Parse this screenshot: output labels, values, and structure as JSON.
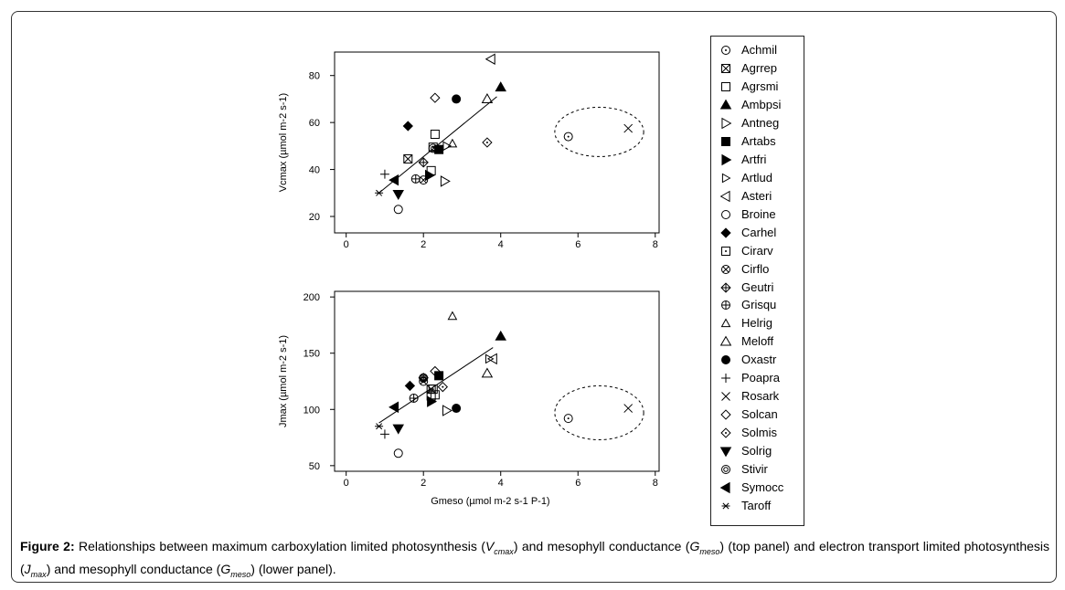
{
  "figure": {
    "caption_label": "Figure 2:",
    "caption_parts": [
      " Relationships between maximum carboxylation limited photosynthesis (",
      "V",
      "cmax",
      ") and mesophyll conductance (",
      "G",
      "meso",
      ") (top panel) and electron transport limited photosynthesis (",
      "J",
      "max",
      ") and mesophyll conductance (",
      "G",
      "meso",
      ") (lower panel)."
    ]
  },
  "legend": {
    "items": [
      {
        "label": "Achmil",
        "marker": "circle-dot"
      },
      {
        "label": "Agrrep",
        "marker": "square-x"
      },
      {
        "label": "Agrsmi",
        "marker": "square-open"
      },
      {
        "label": "Ambpsi",
        "marker": "triangle-up-filled"
      },
      {
        "label": "Antneg",
        "marker": "triangle-right-open"
      },
      {
        "label": "Artabs",
        "marker": "square-filled"
      },
      {
        "label": "Artfri",
        "marker": "triangle-right-filled"
      },
      {
        "label": "Artlud",
        "marker": "triangle-right-small"
      },
      {
        "label": "Asteri",
        "marker": "triangle-left-open"
      },
      {
        "label": "Broine",
        "marker": "circle-open"
      },
      {
        "label": "Carhel",
        "marker": "diamond-filled"
      },
      {
        "label": "Cirarv",
        "marker": "square-dot"
      },
      {
        "label": "Cirflo",
        "marker": "circle-x"
      },
      {
        "label": "Geutri",
        "marker": "diamond-plus"
      },
      {
        "label": "Grisqu",
        "marker": "circle-plus"
      },
      {
        "label": "Helrig",
        "marker": "triangle-up-small"
      },
      {
        "label": "Meloff",
        "marker": "triangle-up-open"
      },
      {
        "label": "Oxastr",
        "marker": "circle-filled"
      },
      {
        "label": "Poapra",
        "marker": "plus"
      },
      {
        "label": "Rosark",
        "marker": "cross"
      },
      {
        "label": "Solcan",
        "marker": "diamond-open"
      },
      {
        "label": "Solmis",
        "marker": "diamond-dot"
      },
      {
        "label": "Solrig",
        "marker": "triangle-down-filled"
      },
      {
        "label": "Stivir",
        "marker": "circle-circle"
      },
      {
        "label": "Symocc",
        "marker": "triangle-left-filled"
      },
      {
        "label": "Taroff",
        "marker": "asterisk"
      }
    ]
  },
  "chart_data": [
    {
      "type": "scatter",
      "panel": "top",
      "ylabel": "Vcmax (µmol m-2 s-1)",
      "xlabel": "",
      "xlim": [
        -0.3,
        8.1
      ],
      "ylim": [
        13,
        90
      ],
      "xticks": [
        0,
        2,
        4,
        6,
        8
      ],
      "yticks": [
        20,
        40,
        60,
        80
      ],
      "fit_line": {
        "x": [
          0.85,
          3.9
        ],
        "y": [
          30,
          71
        ]
      },
      "outlier_ellipse": {
        "center": [
          6.55,
          56
        ],
        "rx": 1.15,
        "ry": 10.5
      },
      "points": [
        {
          "species": "Achmil",
          "x": 5.75,
          "y": 54
        },
        {
          "species": "Agrrep",
          "x": 1.6,
          "y": 44.5
        },
        {
          "species": "Agrsmi",
          "x": 2.3,
          "y": 55
        },
        {
          "species": "Agrsmi",
          "x": 2.2,
          "y": 39.5
        },
        {
          "species": "Ambpsi",
          "x": 4.0,
          "y": 75
        },
        {
          "species": "Antneg",
          "x": 2.55,
          "y": 35
        },
        {
          "species": "Artabs",
          "x": 2.4,
          "y": 48.5
        },
        {
          "species": "Artfri",
          "x": 2.15,
          "y": 37.5
        },
        {
          "species": "Artlud",
          "x": 2.6,
          "y": 50
        },
        {
          "species": "Asteri",
          "x": 3.75,
          "y": 87
        },
        {
          "species": "Broine",
          "x": 1.35,
          "y": 23
        },
        {
          "species": "Carhel",
          "x": 1.6,
          "y": 58.5
        },
        {
          "species": "Cirarv",
          "x": 2.25,
          "y": 49.5
        },
        {
          "species": "Cirflo",
          "x": 2.0,
          "y": 35.5
        },
        {
          "species": "Geutri",
          "x": 2.0,
          "y": 43
        },
        {
          "species": "Grisqu",
          "x": 1.8,
          "y": 36
        },
        {
          "species": "Helrig",
          "x": 2.75,
          "y": 51
        },
        {
          "species": "Meloff",
          "x": 3.65,
          "y": 70
        },
        {
          "species": "Oxastr",
          "x": 2.85,
          "y": 70
        },
        {
          "species": "Poapra",
          "x": 1.0,
          "y": 38
        },
        {
          "species": "Rosark",
          "x": 7.3,
          "y": 57.5
        },
        {
          "species": "Solcan",
          "x": 2.3,
          "y": 70.5
        },
        {
          "species": "Solmis",
          "x": 3.65,
          "y": 51.5
        },
        {
          "species": "Solrig",
          "x": 1.35,
          "y": 29.5
        },
        {
          "species": "Stivir",
          "x": 2.25,
          "y": 49
        },
        {
          "species": "Symocc",
          "x": 1.25,
          "y": 35.5
        },
        {
          "species": "Taroff",
          "x": 0.85,
          "y": 30
        }
      ]
    },
    {
      "type": "scatter",
      "panel": "bottom",
      "ylabel": "Jmax (µmol m-2 s-1)",
      "xlabel": "Gmeso (µmol m-2 s-1 P-1)",
      "xlim": [
        -0.3,
        8.1
      ],
      "ylim": [
        45,
        205
      ],
      "xticks": [
        0,
        2,
        4,
        6,
        8
      ],
      "yticks": [
        50,
        100,
        150,
        200
      ],
      "fit_line": {
        "x": [
          0.85,
          3.8
        ],
        "y": [
          88,
          155
        ]
      },
      "outlier_ellipse": {
        "center": [
          6.55,
          97
        ],
        "rx": 1.15,
        "ry": 24
      },
      "points": [
        {
          "species": "Achmil",
          "x": 5.75,
          "y": 92
        },
        {
          "species": "Agrrep",
          "x": 2.2,
          "y": 118
        },
        {
          "species": "Agrsmi",
          "x": 2.3,
          "y": 113
        },
        {
          "species": "Agrsmi",
          "x": 2.2,
          "y": 112
        },
        {
          "species": "Ambpsi",
          "x": 4.0,
          "y": 165
        },
        {
          "species": "Antneg",
          "x": 2.6,
          "y": 99
        },
        {
          "species": "Artabs",
          "x": 2.4,
          "y": 130
        },
        {
          "species": "Artfri",
          "x": 2.2,
          "y": 107
        },
        {
          "species": "Artlud",
          "x": 3.7,
          "y": 145
        },
        {
          "species": "Asteri",
          "x": 3.8,
          "y": 145
        },
        {
          "species": "Broine",
          "x": 1.35,
          "y": 61
        },
        {
          "species": "Carhel",
          "x": 1.65,
          "y": 121
        },
        {
          "species": "Cirarv",
          "x": 2.25,
          "y": 118
        },
        {
          "species": "Cirflo",
          "x": 2.0,
          "y": 125
        },
        {
          "species": "Geutri",
          "x": 2.0,
          "y": 128
        },
        {
          "species": "Grisqu",
          "x": 1.75,
          "y": 110
        },
        {
          "species": "Helrig",
          "x": 2.75,
          "y": 183
        },
        {
          "species": "Meloff",
          "x": 3.65,
          "y": 132
        },
        {
          "species": "Oxastr",
          "x": 2.85,
          "y": 101
        },
        {
          "species": "Poapra",
          "x": 1.0,
          "y": 78
        },
        {
          "species": "Rosark",
          "x": 7.3,
          "y": 101
        },
        {
          "species": "Solcan",
          "x": 2.3,
          "y": 134
        },
        {
          "species": "Solmis",
          "x": 2.5,
          "y": 120
        },
        {
          "species": "Solrig",
          "x": 1.35,
          "y": 83
        },
        {
          "species": "Stivir",
          "x": 2.0,
          "y": 128
        },
        {
          "species": "Symocc",
          "x": 1.25,
          "y": 102
        },
        {
          "species": "Taroff",
          "x": 0.85,
          "y": 85
        }
      ]
    }
  ]
}
